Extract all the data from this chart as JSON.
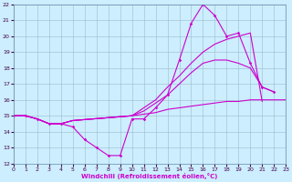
{
  "xlabel": "Windchill (Refroidissement éolien,°C)",
  "xlim": [
    0,
    23
  ],
  "ylim": [
    12,
    22
  ],
  "yticks": [
    12,
    13,
    14,
    15,
    16,
    17,
    18,
    19,
    20,
    21,
    22
  ],
  "xticks": [
    0,
    1,
    2,
    3,
    4,
    5,
    6,
    7,
    8,
    9,
    10,
    11,
    12,
    13,
    14,
    15,
    16,
    17,
    18,
    19,
    20,
    21,
    22,
    23
  ],
  "background_color": "#cceeff",
  "grid_color": "#99bbcc",
  "line_color": "#cc00cc",
  "line1_x": [
    0,
    1,
    2,
    3,
    4,
    5,
    6,
    7,
    8,
    9,
    10,
    11,
    12,
    13,
    14,
    15,
    16,
    17,
    18,
    19,
    20,
    21,
    22
  ],
  "line1_y": [
    15.0,
    15.0,
    14.8,
    14.5,
    14.5,
    14.3,
    13.5,
    13.0,
    12.5,
    12.5,
    14.8,
    14.8,
    15.5,
    16.3,
    18.5,
    20.8,
    22.0,
    21.3,
    20.0,
    20.2,
    18.3,
    16.8,
    16.5
  ],
  "line2_x": [
    0,
    1,
    2,
    3,
    4,
    5,
    10,
    11,
    12,
    13,
    14,
    15,
    16,
    17,
    18,
    19,
    20,
    21
  ],
  "line2_y": [
    15.0,
    15.0,
    14.8,
    14.5,
    14.5,
    14.7,
    15.0,
    15.5,
    16.0,
    16.8,
    17.5,
    18.3,
    19.0,
    19.5,
    19.8,
    20.0,
    20.2,
    15.9
  ],
  "line3_x": [
    0,
    1,
    2,
    3,
    4,
    5,
    10,
    11,
    12,
    13,
    14,
    15,
    16,
    17,
    18,
    19,
    20,
    21,
    22
  ],
  "line3_y": [
    15.0,
    15.0,
    14.8,
    14.5,
    14.5,
    14.7,
    15.0,
    15.3,
    15.8,
    16.3,
    17.0,
    17.7,
    18.3,
    18.5,
    18.5,
    18.3,
    18.0,
    16.8,
    16.5
  ],
  "line4_x": [
    0,
    1,
    2,
    3,
    4,
    5,
    10,
    11,
    12,
    13,
    14,
    15,
    16,
    17,
    18,
    19,
    20,
    21,
    22,
    23
  ],
  "line4_y": [
    15.0,
    15.0,
    14.8,
    14.5,
    14.5,
    14.7,
    15.0,
    15.1,
    15.2,
    15.4,
    15.5,
    15.6,
    15.7,
    15.8,
    15.9,
    15.9,
    16.0,
    16.0,
    16.0,
    16.0
  ]
}
